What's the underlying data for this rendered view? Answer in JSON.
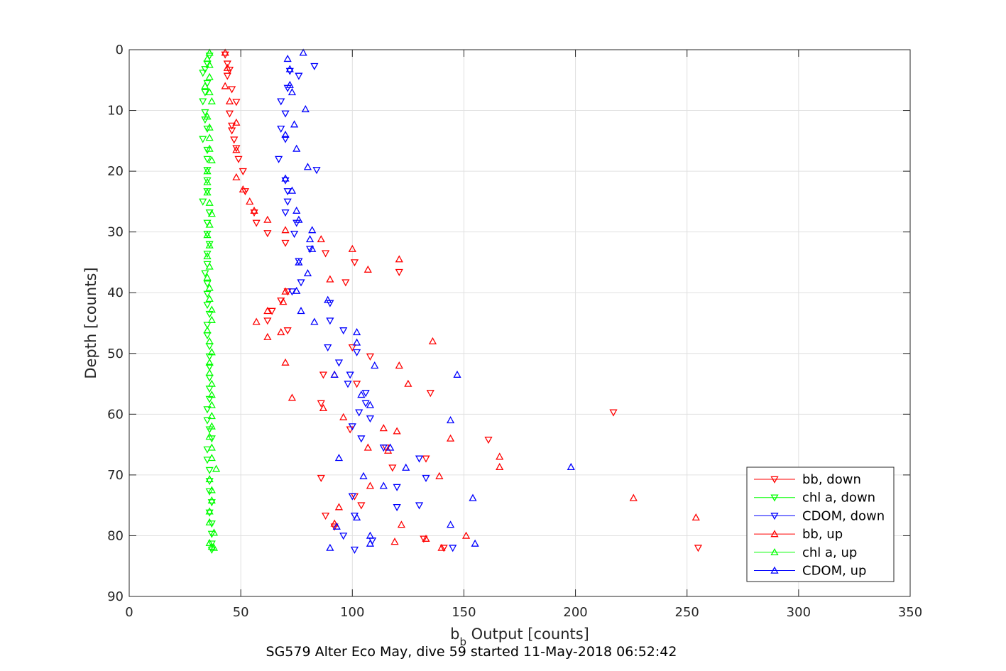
{
  "chart_data": {
    "type": "scatter",
    "title": "SG579 Alter Eco May, dive 59 started 11-May-2018 06:52:42",
    "xlabel_main": "b",
    "xlabel_sub": "b",
    "xlabel_rest": " Output [counts]",
    "ylabel": "Depth [counts]",
    "xlim": [
      0,
      350
    ],
    "ylim": [
      0,
      90
    ],
    "y_reversed": true,
    "grid": true,
    "legend_position": "lower-right",
    "xticks": [
      "0",
      "50",
      "100",
      "150",
      "200",
      "250",
      "300",
      "350"
    ],
    "xtick_values": [
      0,
      50,
      100,
      150,
      200,
      250,
      300,
      350
    ],
    "yticks": [
      "0",
      "10",
      "20",
      "30",
      "40",
      "50",
      "60",
      "70",
      "80",
      "90"
    ],
    "ytick_values": [
      0,
      10,
      20,
      30,
      40,
      50,
      60,
      70,
      80,
      90
    ],
    "series": [
      {
        "name": "bb, down",
        "color": "#ff0000",
        "marker": "triangle-down",
        "points": [
          [
            43,
            0.8
          ],
          [
            44,
            2.3
          ],
          [
            45,
            3.3
          ],
          [
            44,
            4.3
          ],
          [
            46,
            6.5
          ],
          [
            48,
            8.6
          ],
          [
            45,
            10.5
          ],
          [
            46,
            12.5
          ],
          [
            46,
            13.3
          ],
          [
            47,
            14.8
          ],
          [
            48,
            16.2
          ],
          [
            49,
            18.0
          ],
          [
            51,
            20.0
          ],
          [
            52,
            23.3
          ],
          [
            56,
            26.8
          ],
          [
            57,
            28.5
          ],
          [
            62,
            30.2
          ],
          [
            70,
            31.8
          ],
          [
            88,
            33.5
          ],
          [
            101,
            35.0
          ],
          [
            97,
            38.3
          ],
          [
            121,
            36.6
          ],
          [
            71,
            39.8
          ],
          [
            68,
            41.3
          ],
          [
            64,
            43.0
          ],
          [
            62,
            44.6
          ],
          [
            71,
            46.2
          ],
          [
            100,
            49.0
          ],
          [
            108,
            50.5
          ],
          [
            87,
            53.5
          ],
          [
            102,
            55.0
          ],
          [
            86,
            58.2
          ],
          [
            135,
            56.5
          ],
          [
            99,
            62.5
          ],
          [
            115,
            65.5
          ],
          [
            217,
            59.7
          ],
          [
            161,
            64.2
          ],
          [
            133,
            67.3
          ],
          [
            118,
            68.8
          ],
          [
            86,
            70.5
          ],
          [
            104,
            75.0
          ],
          [
            101,
            73.5
          ],
          [
            88,
            76.7
          ],
          [
            92,
            78.5
          ],
          [
            132,
            80.5
          ],
          [
            141,
            82.0
          ],
          [
            255,
            82.0
          ]
        ]
      },
      {
        "name": "chl a, down",
        "color": "#00ff00",
        "marker": "triangle-down",
        "points": [
          [
            36,
            1.0
          ],
          [
            35,
            2.3
          ],
          [
            34,
            3.2
          ],
          [
            33,
            3.8
          ],
          [
            35,
            5.5
          ],
          [
            34,
            7.0
          ],
          [
            33,
            8.5
          ],
          [
            34,
            10.3
          ],
          [
            34,
            11.5
          ],
          [
            35,
            13.0
          ],
          [
            33,
            14.7
          ],
          [
            35,
            16.5
          ],
          [
            35,
            18.0
          ],
          [
            35,
            19.8
          ],
          [
            35,
            21.5
          ],
          [
            35,
            23.3
          ],
          [
            33,
            25.0
          ],
          [
            36,
            26.8
          ],
          [
            35,
            28.5
          ],
          [
            35,
            30.3
          ],
          [
            36,
            32.0
          ],
          [
            35,
            33.6
          ],
          [
            35,
            35.3
          ],
          [
            34,
            36.8
          ],
          [
            35,
            38.5
          ],
          [
            35,
            40.2
          ],
          [
            35,
            42.0
          ],
          [
            36,
            43.5
          ],
          [
            35,
            45.3
          ],
          [
            35,
            47.0
          ],
          [
            36,
            48.8
          ],
          [
            36,
            50.5
          ],
          [
            36,
            52.2
          ],
          [
            36,
            54.0
          ],
          [
            36,
            55.8
          ],
          [
            36,
            57.5
          ],
          [
            35,
            59.2
          ],
          [
            35,
            61.0
          ],
          [
            36,
            62.5
          ],
          [
            37,
            64.0
          ],
          [
            35,
            65.8
          ],
          [
            35,
            67.5
          ],
          [
            36,
            69.2
          ],
          [
            36,
            71.0
          ],
          [
            36,
            72.7
          ],
          [
            37,
            74.5
          ],
          [
            36,
            76.2
          ],
          [
            37,
            78.0
          ],
          [
            37,
            79.7
          ],
          [
            37,
            81.3
          ],
          [
            37,
            82.3
          ]
        ]
      },
      {
        "name": "CDOM, down",
        "color": "#0000ff",
        "marker": "triangle-down",
        "points": [
          [
            83,
            2.7
          ],
          [
            72,
            3.5
          ],
          [
            76,
            4.3
          ],
          [
            71,
            6.3
          ],
          [
            68,
            8.5
          ],
          [
            70,
            10.5
          ],
          [
            68,
            13.0
          ],
          [
            70,
            14.7
          ],
          [
            67,
            18.0
          ],
          [
            84,
            19.8
          ],
          [
            70,
            21.5
          ],
          [
            71,
            23.3
          ],
          [
            71,
            25.0
          ],
          [
            70,
            26.8
          ],
          [
            75,
            28.5
          ],
          [
            74,
            30.3
          ],
          [
            81,
            32.8
          ],
          [
            76,
            34.8
          ],
          [
            77,
            38.3
          ],
          [
            73,
            39.8
          ],
          [
            90,
            41.7
          ],
          [
            90,
            44.6
          ],
          [
            96,
            46.2
          ],
          [
            89,
            49.0
          ],
          [
            102,
            49.8
          ],
          [
            94,
            51.5
          ],
          [
            99,
            53.5
          ],
          [
            98,
            55.0
          ],
          [
            106,
            56.5
          ],
          [
            106,
            58.2
          ],
          [
            103,
            59.7
          ],
          [
            108,
            60.7
          ],
          [
            100,
            62.0
          ],
          [
            104,
            64.0
          ],
          [
            114,
            65.5
          ],
          [
            130,
            67.3
          ],
          [
            133,
            70.5
          ],
          [
            120,
            72.0
          ],
          [
            130,
            75.0
          ],
          [
            101,
            76.7
          ],
          [
            100,
            73.5
          ],
          [
            109,
            80.8
          ],
          [
            96,
            80.0
          ],
          [
            145,
            82.0
          ],
          [
            101,
            82.3
          ],
          [
            120,
            75.3
          ]
        ]
      },
      {
        "name": "bb, up",
        "color": "#ff0000",
        "marker": "triangle-up",
        "points": [
          [
            43,
            0.5
          ],
          [
            44,
            3.0
          ],
          [
            43,
            6.0
          ],
          [
            45,
            8.5
          ],
          [
            48,
            12.0
          ],
          [
            48,
            16.5
          ],
          [
            48,
            21.0
          ],
          [
            51,
            23.0
          ],
          [
            54,
            25.0
          ],
          [
            56,
            26.5
          ],
          [
            62,
            28.0
          ],
          [
            70,
            29.7
          ],
          [
            86,
            31.2
          ],
          [
            100,
            32.8
          ],
          [
            107,
            36.2
          ],
          [
            121,
            34.5
          ],
          [
            90,
            37.8
          ],
          [
            70,
            39.8
          ],
          [
            69,
            41.5
          ],
          [
            62,
            43.0
          ],
          [
            57,
            44.8
          ],
          [
            62,
            47.3
          ],
          [
            68,
            46.5
          ],
          [
            136,
            48.0
          ],
          [
            70,
            51.5
          ],
          [
            121,
            52.0
          ],
          [
            92,
            53.5
          ],
          [
            125,
            55.0
          ],
          [
            73,
            57.3
          ],
          [
            87,
            59.0
          ],
          [
            96,
            60.5
          ],
          [
            114,
            62.3
          ],
          [
            120,
            62.8
          ],
          [
            144,
            64.0
          ],
          [
            107,
            65.5
          ],
          [
            116,
            66.0
          ],
          [
            166,
            67.0
          ],
          [
            166,
            68.7
          ],
          [
            139,
            70.2
          ],
          [
            108,
            71.8
          ],
          [
            226,
            73.8
          ],
          [
            94,
            75.3
          ],
          [
            122,
            78.2
          ],
          [
            119,
            81.0
          ],
          [
            151,
            80.0
          ],
          [
            133,
            80.5
          ],
          [
            140,
            82.0
          ],
          [
            254,
            77.0
          ],
          [
            92,
            78.0
          ]
        ]
      },
      {
        "name": "chl a, up",
        "color": "#00ff00",
        "marker": "triangle-up",
        "points": [
          [
            36,
            0.5
          ],
          [
            35,
            1.5
          ],
          [
            36,
            2.5
          ],
          [
            36,
            4.5
          ],
          [
            34,
            6.0
          ],
          [
            36,
            7.0
          ],
          [
            37,
            8.5
          ],
          [
            35,
            11.0
          ],
          [
            36,
            12.8
          ],
          [
            36,
            14.5
          ],
          [
            36,
            16.3
          ],
          [
            37,
            18.2
          ],
          [
            35,
            20.0
          ],
          [
            35,
            21.8
          ],
          [
            35,
            23.5
          ],
          [
            36,
            25.2
          ],
          [
            37,
            27.0
          ],
          [
            36,
            28.8
          ],
          [
            35,
            30.5
          ],
          [
            36,
            32.2
          ],
          [
            35,
            34.0
          ],
          [
            36,
            35.7
          ],
          [
            35,
            37.5
          ],
          [
            36,
            39.2
          ],
          [
            36,
            41.0
          ],
          [
            37,
            42.8
          ],
          [
            37,
            44.5
          ],
          [
            35,
            46.2
          ],
          [
            36,
            48.0
          ],
          [
            37,
            49.8
          ],
          [
            36,
            51.5
          ],
          [
            36,
            53.2
          ],
          [
            37,
            55.0
          ],
          [
            37,
            56.8
          ],
          [
            37,
            58.5
          ],
          [
            37,
            60.3
          ],
          [
            37,
            62.0
          ],
          [
            36,
            63.7
          ],
          [
            37,
            65.5
          ],
          [
            37,
            67.2
          ],
          [
            39,
            69.0
          ],
          [
            36,
            70.7
          ],
          [
            37,
            72.5
          ],
          [
            37,
            74.2
          ],
          [
            36,
            76.0
          ],
          [
            36,
            77.8
          ],
          [
            38,
            79.5
          ],
          [
            36,
            81.2
          ],
          [
            37,
            81.8
          ],
          [
            38,
            82.0
          ]
        ]
      },
      {
        "name": "CDOM, up",
        "color": "#0000ff",
        "marker": "triangle-up",
        "points": [
          [
            78,
            0.5
          ],
          [
            71,
            1.5
          ],
          [
            72,
            3.2
          ],
          [
            72,
            5.8
          ],
          [
            73,
            7.0
          ],
          [
            79,
            9.8
          ],
          [
            74,
            12.3
          ],
          [
            70,
            14.0
          ],
          [
            75,
            16.3
          ],
          [
            80,
            19.3
          ],
          [
            70,
            21.2
          ],
          [
            73,
            23.2
          ],
          [
            75,
            26.5
          ],
          [
            76,
            28.0
          ],
          [
            82,
            29.7
          ],
          [
            81,
            31.2
          ],
          [
            82,
            32.8
          ],
          [
            76,
            35.0
          ],
          [
            80,
            36.8
          ],
          [
            75,
            39.7
          ],
          [
            89,
            41.2
          ],
          [
            77,
            43.0
          ],
          [
            83,
            44.8
          ],
          [
            102,
            46.5
          ],
          [
            102,
            48.2
          ],
          [
            110,
            52.0
          ],
          [
            92,
            53.5
          ],
          [
            104,
            56.8
          ],
          [
            108,
            58.5
          ],
          [
            117,
            65.5
          ],
          [
            144,
            61.0
          ],
          [
            147,
            53.5
          ],
          [
            94,
            67.2
          ],
          [
            105,
            70.2
          ],
          [
            124,
            68.8
          ],
          [
            114,
            71.8
          ],
          [
            154,
            73.8
          ],
          [
            102,
            77.0
          ],
          [
            93,
            78.5
          ],
          [
            108,
            80.0
          ],
          [
            155,
            81.3
          ],
          [
            198,
            68.7
          ],
          [
            144,
            78.2
          ],
          [
            90,
            82.0
          ],
          [
            108,
            81.3
          ]
        ]
      }
    ]
  }
}
